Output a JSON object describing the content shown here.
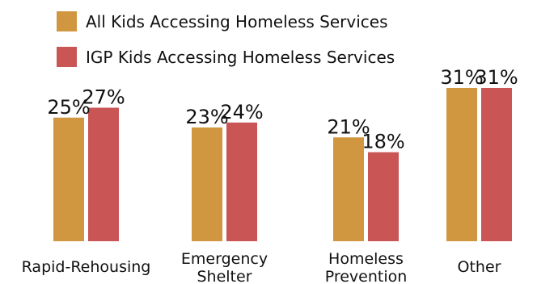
{
  "chart_data": {
    "type": "bar",
    "title": "",
    "xlabel": "",
    "ylabel": "",
    "ylim": [
      0,
      31
    ],
    "grid": false,
    "legend_placement": "top",
    "categories": [
      [
        "Rapid-Rehousing"
      ],
      [
        "Emergency",
        "Shelter"
      ],
      [
        "Homeless",
        "Prevention"
      ],
      [
        "Other"
      ]
    ],
    "series": [
      {
        "name": "All Kids Accessing Homeless Services",
        "color": "#D09640",
        "values": [
          25,
          23,
          21,
          31
        ],
        "labels": [
          "25%",
          "23%",
          "21%",
          "31%"
        ]
      },
      {
        "name": "IGP Kids Accessing Homeless Services",
        "color": "#C95555",
        "values": [
          27,
          24,
          18,
          31
        ],
        "labels": [
          "27%",
          "24%",
          "18%",
          "31%"
        ]
      }
    ]
  }
}
